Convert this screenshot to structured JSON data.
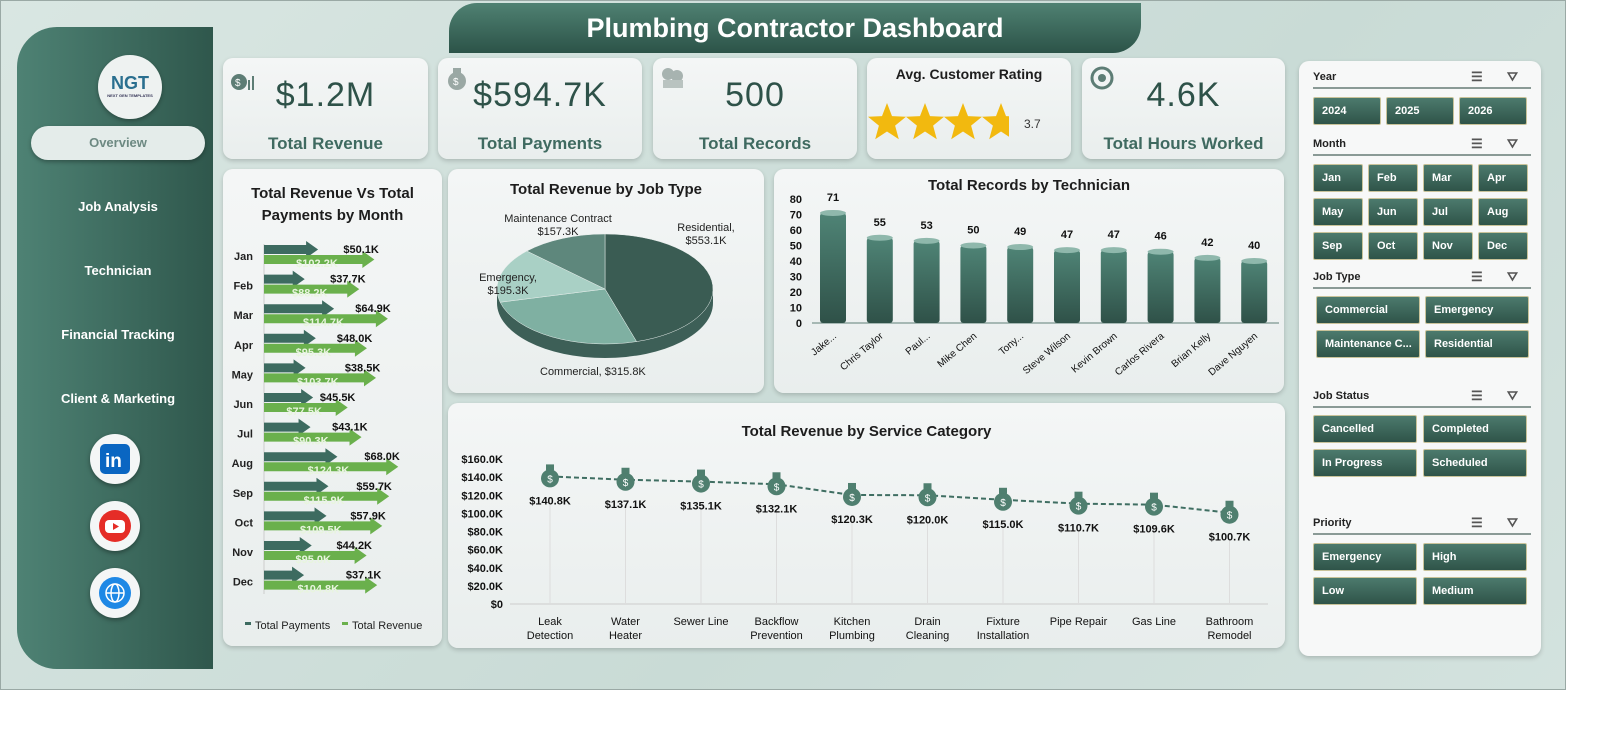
{
  "title": "Plumbing Contractor Dashboard",
  "logo": {
    "text": "NGT",
    "tagline": "NEXT GEN TEMPLATES"
  },
  "nav": [
    {
      "label": "Overview",
      "active": true
    },
    {
      "label": "Job Analysis"
    },
    {
      "label": "Technician"
    },
    {
      "label": "Financial Tracking"
    },
    {
      "label": "Client & Marketing"
    }
  ],
  "social": [
    {
      "icon": "linkedin-icon",
      "color": "#0a66c2"
    },
    {
      "icon": "youtube-icon",
      "color": "#e52d27"
    },
    {
      "icon": "globe-icon",
      "color": "#1e88e5"
    }
  ],
  "kpis": [
    {
      "value": "$1.2M",
      "label": "Total Revenue",
      "icon": "money-bag-chart-icon"
    },
    {
      "value": "$594.7K",
      "label": "Total Payments",
      "icon": "money-bag-icon"
    },
    {
      "value": "500",
      "label": "Total Records",
      "icon": "cash-stack-icon"
    },
    {
      "label": "Avg. Customer Rating",
      "rating": 3.7,
      "rating_text": "3.7",
      "max": 5,
      "star_color": "#f2b90f"
    },
    {
      "value": "4.6K",
      "label": "Total Hours Worked",
      "icon": "clock-refresh-icon"
    }
  ],
  "chart_data": [
    {
      "type": "bar",
      "title": "Total Revenue Vs Total Payments by Month",
      "orientation": "horizontal",
      "categories": [
        "Jan",
        "Feb",
        "Mar",
        "Apr",
        "May",
        "Jun",
        "Jul",
        "Aug",
        "Sep",
        "Oct",
        "Nov",
        "Dec"
      ],
      "series": [
        {
          "name": "Total Payments",
          "color": "#3d6b60",
          "values": [
            50.1,
            37.7,
            64.9,
            48.0,
            38.5,
            45.5,
            43.1,
            68.0,
            59.7,
            57.9,
            44.2,
            37.1
          ],
          "labels": [
            "$50.1K",
            "$37.7K",
            "$64.9K",
            "$48.0K",
            "$38.5K",
            "$45.5K",
            "$43.1K",
            "$68.0K",
            "$59.7K",
            "$57.9K",
            "$44.2K",
            "$37.1K"
          ]
        },
        {
          "name": "Total Revenue",
          "color": "#6ab04c",
          "values": [
            102.2,
            88.2,
            114.7,
            95.3,
            103.7,
            77.5,
            90.3,
            124.3,
            115.9,
            109.5,
            95.0,
            104.8
          ],
          "labels": [
            "$102.2K",
            "$88.2K",
            "$114.7K",
            "$95.3K",
            "$103.7K",
            "$77.5K",
            "$90.3K",
            "$124.3K",
            "$115.9K",
            "$109.5K",
            "$95.0K",
            "$104.8K"
          ]
        }
      ],
      "legend": "bottom"
    },
    {
      "type": "pie",
      "title": "Total Revenue by Job Type",
      "slices": [
        {
          "name": "Residential",
          "value": 553.1,
          "label": "Residential, $553.1K",
          "color": "#3a5c53"
        },
        {
          "name": "Commercial",
          "value": 315.8,
          "label": "Commercial, $315.8K",
          "color": "#7fb0a2"
        },
        {
          "name": "Emergency",
          "value": 195.3,
          "label": "Emergency, $195.3K",
          "color": "#a9d0c5"
        },
        {
          "name": "Maintenance Contract",
          "value": 157.3,
          "label": "Maintenance Contract, $157.3K",
          "color": "#5e877c"
        }
      ]
    },
    {
      "type": "bar",
      "title": "Total Records by Technician",
      "categories": [
        "Jake...",
        "Chris Taylor",
        "Paul...",
        "Mike Chen",
        "Tony...",
        "Steve Wilson",
        "Kevin Brown",
        "Carlos Rivera",
        "Brian Kelly",
        "Dave Nguyen"
      ],
      "values": [
        71,
        55,
        53,
        50,
        49,
        47,
        47,
        46,
        42,
        40
      ],
      "ylim": [
        0,
        80
      ],
      "yticks": [
        "0",
        "10",
        "20",
        "30",
        "40",
        "50",
        "60",
        "70",
        "80"
      ],
      "color": "#3f6e62"
    },
    {
      "type": "line",
      "title": "Total Revenue by Service Category",
      "categories": [
        "Leak Detection",
        "Water Heater",
        "Sewer Line",
        "Backflow Prevention",
        "Kitchen Plumbing",
        "Drain Cleaning",
        "Fixture Installation",
        "Pipe Repair",
        "Gas Line",
        "Bathroom Remodel"
      ],
      "values": [
        140.8,
        137.1,
        135.1,
        132.1,
        120.3,
        120.0,
        115.0,
        110.7,
        109.6,
        100.7
      ],
      "labels": [
        "$140.8K",
        "$137.1K",
        "$135.1K",
        "$132.1K",
        "$120.3K",
        "$120.0K",
        "$115.0K",
        "$110.7K",
        "$109.6K",
        "$100.7K"
      ],
      "ylim": [
        0,
        160
      ],
      "yticks": [
        "$0",
        "$20.0K",
        "$40.0K",
        "$60.0K",
        "$80.0K",
        "$100.0K",
        "$120.0K",
        "$140.0K",
        "$160.0K"
      ],
      "marker": "money-bag-icon",
      "color": "#3f6e62"
    }
  ],
  "slicers": [
    {
      "title": "Year",
      "items": [
        "2024",
        "2025",
        "2026"
      ]
    },
    {
      "title": "Month",
      "items": [
        "Jan",
        "Feb",
        "Mar",
        "Apr",
        "May",
        "Jun",
        "Jul",
        "Aug",
        "Sep",
        "Oct",
        "Nov",
        "Dec"
      ]
    },
    {
      "title": "Job Type",
      "items": [
        "Commercial",
        "Emergency",
        "Maintenance C...",
        "Residential"
      ]
    },
    {
      "title": "Job Status",
      "items": [
        "Cancelled",
        "Completed",
        "In Progress",
        "Scheduled"
      ]
    },
    {
      "title": "Priority",
      "items": [
        "Emergency",
        "High",
        "Low",
        "Medium"
      ]
    }
  ]
}
